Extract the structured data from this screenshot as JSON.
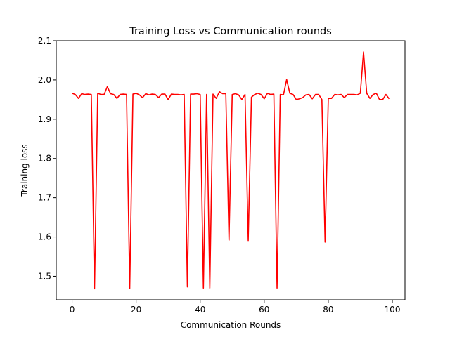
{
  "chart_data": {
    "type": "line",
    "title": "Training Loss vs Communication rounds",
    "xlabel": "Communication Rounds",
    "ylabel": "Training loss",
    "xlim": [
      -4.95,
      103.95
    ],
    "ylim": [
      1.44,
      2.1
    ],
    "xticks": [
      0,
      20,
      40,
      60,
      80,
      100
    ],
    "yticks": [
      1.5,
      1.6,
      1.7,
      1.8,
      1.9,
      2.0,
      2.1
    ],
    "xtick_labels": [
      "0",
      "20",
      "40",
      "60",
      "80",
      "100"
    ],
    "ytick_labels": [
      "1.5",
      "1.6",
      "1.7",
      "1.8",
      "1.9",
      "2.0",
      "2.1"
    ],
    "grid": false,
    "series": [
      {
        "color": "#ff0000",
        "x": [
          0,
          1,
          2,
          3,
          4,
          5,
          6,
          7,
          8,
          9,
          10,
          11,
          12,
          13,
          14,
          15,
          16,
          17,
          18,
          19,
          20,
          21,
          22,
          23,
          24,
          25,
          26,
          27,
          28,
          29,
          30,
          31,
          32,
          33,
          34,
          35,
          36,
          37,
          38,
          39,
          40,
          41,
          42,
          43,
          44,
          45,
          46,
          47,
          48,
          49,
          50,
          51,
          52,
          53,
          54,
          55,
          56,
          57,
          58,
          59,
          60,
          61,
          62,
          63,
          64,
          65,
          66,
          67,
          68,
          69,
          70,
          71,
          72,
          73,
          74,
          75,
          76,
          77,
          78,
          79,
          80,
          81,
          82,
          83,
          84,
          85,
          86,
          87,
          88,
          89,
          90,
          91,
          92,
          93,
          94,
          95,
          96,
          97,
          98,
          99
        ],
        "y": [
          1.966,
          1.963,
          1.953,
          1.965,
          1.963,
          1.964,
          1.963,
          1.468,
          1.966,
          1.963,
          1.963,
          1.983,
          1.965,
          1.963,
          1.953,
          1.963,
          1.964,
          1.963,
          1.469,
          1.964,
          1.966,
          1.962,
          1.955,
          1.965,
          1.962,
          1.964,
          1.963,
          1.955,
          1.964,
          1.964,
          1.95,
          1.964,
          1.963,
          1.963,
          1.962,
          1.963,
          1.473,
          1.964,
          1.964,
          1.965,
          1.963,
          1.47,
          1.963,
          1.47,
          1.964,
          1.953,
          1.97,
          1.965,
          1.965,
          1.592,
          1.963,
          1.965,
          1.962,
          1.95,
          1.963,
          1.591,
          1.956,
          1.963,
          1.966,
          1.963,
          1.952,
          1.966,
          1.963,
          1.964,
          1.47,
          1.963,
          1.962,
          2.001,
          1.966,
          1.963,
          1.95,
          1.952,
          1.955,
          1.962,
          1.963,
          1.952,
          1.963,
          1.963,
          1.95,
          1.587,
          1.953,
          1.953,
          1.963,
          1.962,
          1.963,
          1.955,
          1.963,
          1.963,
          1.963,
          1.962,
          1.966,
          2.071,
          1.966,
          1.953,
          1.963,
          1.966,
          1.95,
          1.95,
          1.963,
          1.952
        ]
      }
    ]
  }
}
